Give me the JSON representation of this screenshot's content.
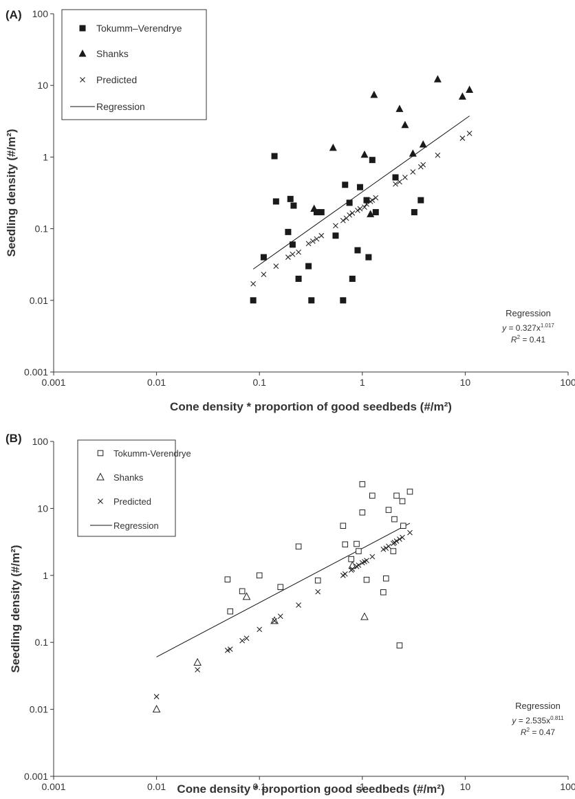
{
  "chart_data": [
    {
      "panel_label": "(A)",
      "type": "scatter",
      "xlabel": "Cone density * proportion of good seedbeds (#/m²)",
      "ylabel": "Seedling density (#/m²)",
      "x_scale": "log",
      "y_scale": "log",
      "xlim": [
        0.001,
        100
      ],
      "ylim": [
        0.001,
        100
      ],
      "x_ticks": [
        0.001,
        0.01,
        0.1,
        1,
        10,
        100
      ],
      "x_tick_labels": [
        "0.001",
        "0.01",
        "0.1",
        "1",
        "10",
        "100"
      ],
      "y_ticks": [
        0.001,
        0.01,
        0.1,
        1,
        10,
        100
      ],
      "y_tick_labels": [
        "0.001",
        "0.01",
        "0.1",
        "1",
        "10",
        "100"
      ],
      "grid": false,
      "legend_position": "top-left",
      "series": [
        {
          "name": "Tokumm–Verendrye",
          "marker": "filled-square",
          "points": [
            [
              0.087,
              0.01
            ],
            [
              0.11,
              0.04
            ],
            [
              0.14,
              1.03
            ],
            [
              0.145,
              0.24
            ],
            [
              0.19,
              0.09
            ],
            [
              0.2,
              0.26
            ],
            [
              0.21,
              0.06
            ],
            [
              0.215,
              0.21
            ],
            [
              0.24,
              0.02
            ],
            [
              0.3,
              0.03
            ],
            [
              0.32,
              0.01
            ],
            [
              0.36,
              0.17
            ],
            [
              0.4,
              0.17
            ],
            [
              0.55,
              0.08
            ],
            [
              0.65,
              0.01
            ],
            [
              0.68,
              0.41
            ],
            [
              0.75,
              0.23
            ],
            [
              0.8,
              0.02
            ],
            [
              0.9,
              0.05
            ],
            [
              0.95,
              0.38
            ],
            [
              1.1,
              0.25
            ],
            [
              1.15,
              0.04
            ],
            [
              1.25,
              0.91
            ],
            [
              1.35,
              0.17
            ],
            [
              2.1,
              0.52
            ],
            [
              3.2,
              0.17
            ],
            [
              3.7,
              0.25
            ]
          ]
        },
        {
          "name": "Shanks",
          "marker": "filled-triangle",
          "points": [
            [
              0.34,
              0.19
            ],
            [
              0.52,
              1.35
            ],
            [
              1.05,
              1.08
            ],
            [
              1.2,
              0.16
            ],
            [
              1.3,
              7.4
            ],
            [
              2.3,
              4.7
            ],
            [
              2.6,
              2.8
            ],
            [
              3.1,
              1.12
            ],
            [
              3.9,
              1.5
            ],
            [
              5.4,
              12.2
            ],
            [
              9.4,
              7.0
            ],
            [
              11,
              8.7
            ]
          ]
        },
        {
          "name": "Predicted",
          "marker": "x",
          "points": [
            [
              0.087,
              0.017
            ],
            [
              0.11,
              0.023
            ],
            [
              0.145,
              0.03
            ],
            [
              0.19,
              0.04
            ],
            [
              0.21,
              0.044
            ],
            [
              0.24,
              0.047
            ],
            [
              0.3,
              0.062
            ],
            [
              0.33,
              0.067
            ],
            [
              0.36,
              0.072
            ],
            [
              0.4,
              0.08
            ],
            [
              0.55,
              0.11
            ],
            [
              0.65,
              0.13
            ],
            [
              0.7,
              0.14
            ],
            [
              0.75,
              0.155
            ],
            [
              0.8,
              0.165
            ],
            [
              0.9,
              0.18
            ],
            [
              0.95,
              0.19
            ],
            [
              1.05,
              0.2
            ],
            [
              1.1,
              0.22
            ],
            [
              1.2,
              0.24
            ],
            [
              1.25,
              0.25
            ],
            [
              1.35,
              0.27
            ],
            [
              2.1,
              0.42
            ],
            [
              2.3,
              0.45
            ],
            [
              2.6,
              0.52
            ],
            [
              3.1,
              0.62
            ],
            [
              3.7,
              0.73
            ],
            [
              3.9,
              0.78
            ],
            [
              5.4,
              1.06
            ],
            [
              9.4,
              1.83
            ],
            [
              11,
              2.14
            ]
          ]
        }
      ],
      "regression": {
        "name": "Regression",
        "a": 0.327,
        "b": 1.017,
        "x_range": [
          0.087,
          11
        ],
        "label_title": "Regression",
        "label_eq_prefix": "y",
        "label_eq_mid": " = 0.327x",
        "label_eq_exp": "1.017",
        "label_r2_prefix": "R",
        "label_r2_sup": "2",
        "label_r2_value": " = 0.41"
      }
    },
    {
      "panel_label": "(B)",
      "type": "scatter",
      "xlabel": "Cone density * proportion good seedbeds (#/m²)",
      "ylabel": "Seedling density (#/m²)",
      "x_scale": "log",
      "y_scale": "log",
      "xlim": [
        0.001,
        100
      ],
      "ylim": [
        0.001,
        100
      ],
      "x_ticks": [
        0.001,
        0.01,
        0.1,
        1,
        10,
        100
      ],
      "x_tick_labels": [
        "0.001",
        "0.01",
        "0.1",
        "1",
        "10",
        "100"
      ],
      "y_ticks": [
        0.001,
        0.01,
        0.1,
        1,
        10,
        100
      ],
      "y_tick_labels": [
        "0.001",
        "0.01",
        "0.1",
        "1",
        "10",
        "100"
      ],
      "grid": false,
      "legend_position": "top-left",
      "series": [
        {
          "name": "Tokumm-Verendrye",
          "marker": "open-square",
          "points": [
            [
              0.049,
              0.87
            ],
            [
              0.052,
              0.29
            ],
            [
              0.068,
              0.58
            ],
            [
              0.1,
              1.0
            ],
            [
              0.16,
              0.67
            ],
            [
              0.24,
              2.7
            ],
            [
              0.37,
              0.84
            ],
            [
              0.65,
              5.5
            ],
            [
              0.68,
              2.9
            ],
            [
              0.78,
              1.75
            ],
            [
              0.88,
              2.95
            ],
            [
              0.92,
              2.3
            ],
            [
              1.0,
              23
            ],
            [
              1.0,
              8.7
            ],
            [
              1.1,
              0.86
            ],
            [
              1.25,
              15.5
            ],
            [
              1.6,
              0.56
            ],
            [
              1.7,
              0.9
            ],
            [
              1.8,
              9.5
            ],
            [
              2.0,
              2.3
            ],
            [
              2.05,
              6.9
            ],
            [
              2.15,
              15.5
            ],
            [
              2.3,
              0.09
            ],
            [
              2.45,
              12.8
            ],
            [
              2.5,
              5.5
            ],
            [
              2.9,
              17.8
            ]
          ]
        },
        {
          "name": "Shanks",
          "marker": "open-triangle",
          "points": [
            [
              0.01,
              0.01
            ],
            [
              0.025,
              0.05
            ],
            [
              0.075,
              0.48
            ],
            [
              0.14,
              0.21
            ],
            [
              0.8,
              1.4
            ],
            [
              1.05,
              0.24
            ]
          ]
        },
        {
          "name": "Predicted",
          "marker": "x",
          "points": [
            [
              0.01,
              0.0155
            ],
            [
              0.025,
              0.039
            ],
            [
              0.049,
              0.076
            ],
            [
              0.052,
              0.079
            ],
            [
              0.068,
              0.106
            ],
            [
              0.075,
              0.115
            ],
            [
              0.1,
              0.156
            ],
            [
              0.14,
              0.21
            ],
            [
              0.16,
              0.245
            ],
            [
              0.24,
              0.36
            ],
            [
              0.37,
              0.57
            ],
            [
              0.65,
              1.0
            ],
            [
              0.68,
              1.05
            ],
            [
              0.78,
              1.2
            ],
            [
              0.8,
              1.24
            ],
            [
              0.88,
              1.36
            ],
            [
              0.92,
              1.42
            ],
            [
              1.0,
              1.54
            ],
            [
              1.05,
              1.6
            ],
            [
              1.1,
              1.67
            ],
            [
              1.25,
              1.9
            ],
            [
              1.6,
              2.45
            ],
            [
              1.7,
              2.55
            ],
            [
              1.8,
              2.72
            ],
            [
              2.0,
              3.0
            ],
            [
              2.05,
              3.1
            ],
            [
              2.15,
              3.25
            ],
            [
              2.3,
              3.47
            ],
            [
              2.45,
              3.7
            ],
            [
              2.9,
              4.35
            ]
          ]
        }
      ],
      "regression": {
        "name": "Regression",
        "a": 2.535,
        "b": 0.811,
        "x_range": [
          0.01,
          2.9
        ],
        "label_title": "Regression",
        "label_eq_prefix": "y",
        "label_eq_mid": " = 2.535x",
        "label_eq_exp": "0.811",
        "label_r2_prefix": "R",
        "label_r2_sup": "2",
        "label_r2_value": " = 0.47"
      }
    }
  ]
}
